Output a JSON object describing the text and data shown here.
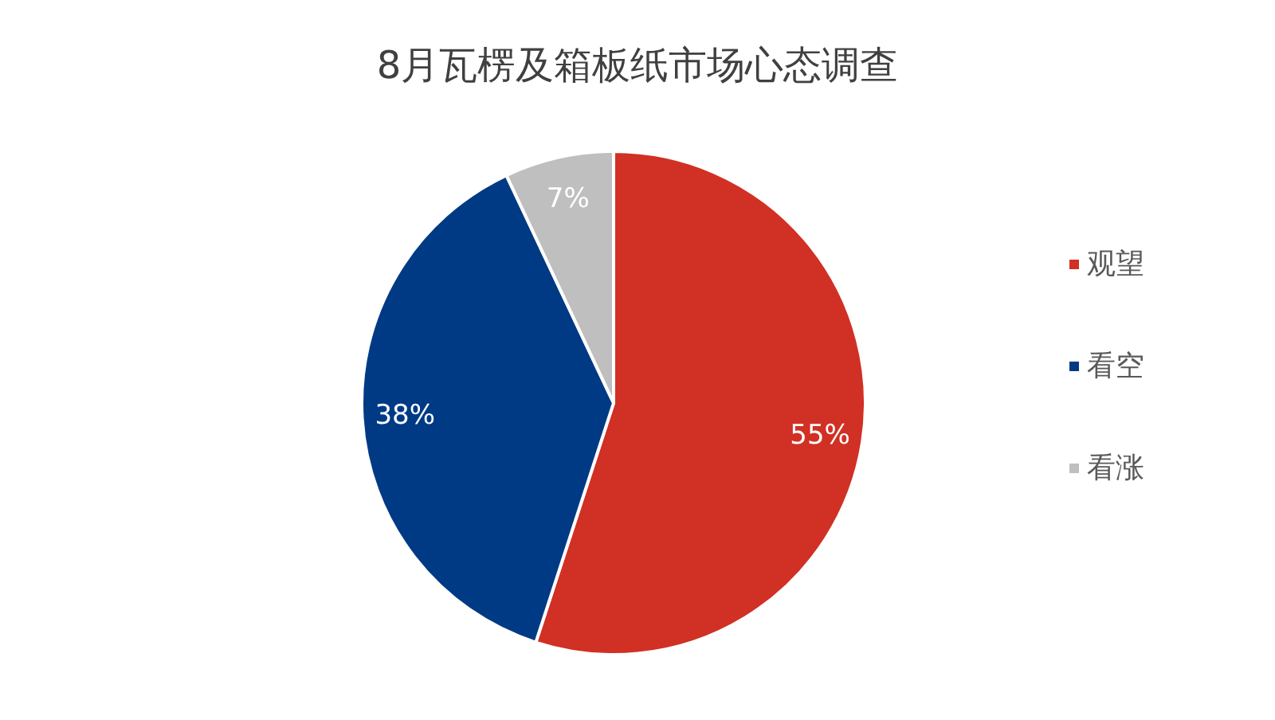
{
  "chart_data": {
    "type": "pie",
    "title": "8月瓦楞及箱板纸市场心态调查",
    "categories": [
      "观望",
      "看空",
      "看涨"
    ],
    "values": [
      55,
      38,
      7
    ],
    "colors": [
      "#d13024",
      "#003a84",
      "#bfbfbf"
    ],
    "value_labels": [
      "55%",
      "38%",
      "7%"
    ],
    "legend": "right"
  }
}
